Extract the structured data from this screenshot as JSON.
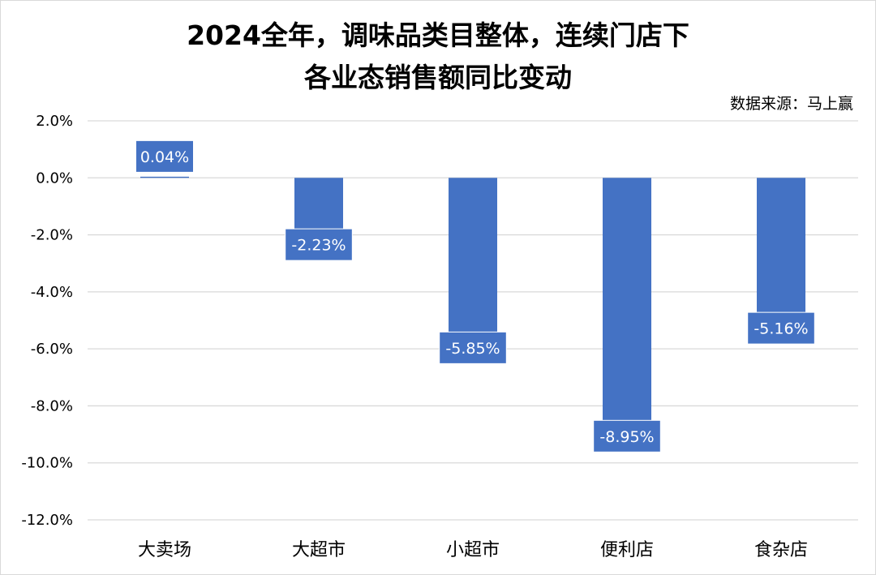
{
  "title_lines": [
    "2024全年，调味品类目整体，连续门店下",
    "各业态销售额同比变动"
  ],
  "source": "数据来源：马上赢",
  "colors": {
    "bar": "#4472C4",
    "grid": "#d9d9d9",
    "label_text": "#ffffff"
  },
  "chart_data": {
    "type": "bar",
    "title": "2024全年，调味品类目整体，连续门店下各业态销售额同比变动",
    "categories": [
      "大卖场",
      "大超市",
      "小超市",
      "便利店",
      "食杂店"
    ],
    "values": [
      0.04,
      -2.23,
      -5.85,
      -8.95,
      -5.16
    ],
    "data_labels": [
      "0.04%",
      "-2.23%",
      "-5.85%",
      "-8.95%",
      "-5.16%"
    ],
    "ylim": [
      -12,
      2
    ],
    "yticks": [
      2,
      0,
      -2,
      -4,
      -6,
      -8,
      -10,
      -12
    ],
    "ytick_labels": [
      "2.0%",
      "0.0%",
      "-2.0%",
      "-4.0%",
      "-6.0%",
      "-8.0%",
      "-10.0%",
      "-12.0%"
    ],
    "grid": true,
    "legend": "none"
  }
}
